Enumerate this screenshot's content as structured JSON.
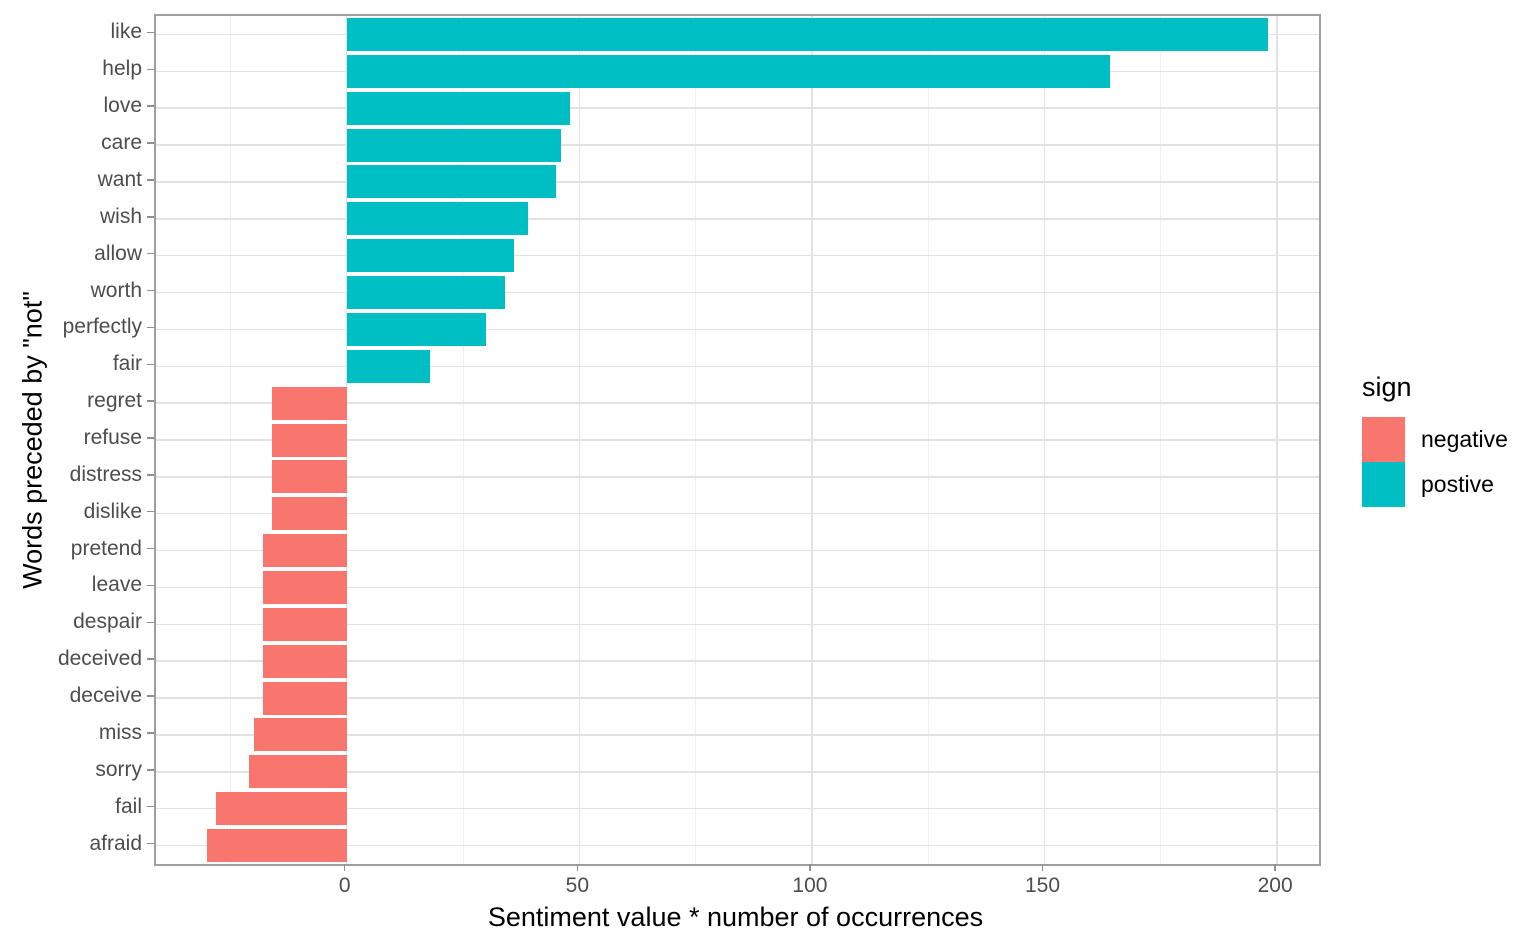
{
  "chart_data": {
    "type": "bar",
    "orientation": "horizontal",
    "title": "",
    "xlabel": "Sentiment value * number of occurrences",
    "ylabel": "Words preceded by \"not\"",
    "categories": [
      "like",
      "help",
      "love",
      "care",
      "want",
      "wish",
      "allow",
      "worth",
      "perfectly",
      "fair",
      "regret",
      "refuse",
      "distress",
      "dislike",
      "pretend",
      "leave",
      "despair",
      "deceived",
      "deceive",
      "miss",
      "sorry",
      "fail",
      "afraid"
    ],
    "values": [
      198,
      164,
      48,
      46,
      45,
      39,
      36,
      34,
      30,
      18,
      -16,
      -16,
      -16,
      -16,
      -18,
      -18,
      -18,
      -18,
      -18,
      -20,
      -21,
      -28,
      -30
    ],
    "signs": [
      "postive",
      "postive",
      "postive",
      "postive",
      "postive",
      "postive",
      "postive",
      "postive",
      "postive",
      "postive",
      "negative",
      "negative",
      "negative",
      "negative",
      "negative",
      "negative",
      "negative",
      "negative",
      "negative",
      "negative",
      "negative",
      "negative",
      "negative"
    ],
    "xlim": [
      -41,
      209
    ],
    "x_major_ticks": [
      0,
      50,
      100,
      150,
      200
    ],
    "x_minor_ticks": [
      -25,
      25,
      75,
      125,
      175
    ],
    "grid": "on",
    "colors": {
      "positive": "#00BFC4",
      "negative": "#F8766D"
    },
    "legend": {
      "title": "sign",
      "position": "right",
      "entries": [
        {
          "label": "negative",
          "color": "#F8766D"
        },
        {
          "label": "postive",
          "color": "#00BFC4"
        }
      ]
    }
  }
}
